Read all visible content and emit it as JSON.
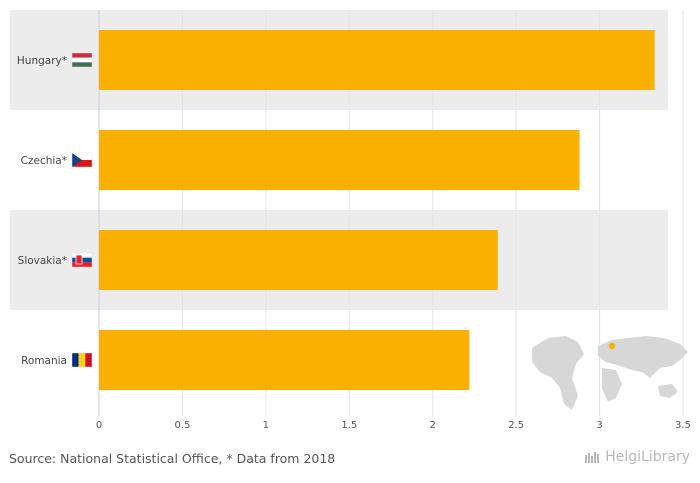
{
  "chart_data": {
    "type": "bar",
    "orientation": "horizontal",
    "categories": [
      "Hungary*",
      "Czechia*",
      "Slovakia*",
      "Romania"
    ],
    "values": [
      3.33,
      2.88,
      2.39,
      2.22
    ],
    "xlim": [
      0,
      3.5
    ],
    "xticks": [
      0,
      0.5,
      1,
      1.5,
      2,
      2.5,
      3,
      3.5
    ],
    "tick_labels": [
      "0",
      "0.5",
      "1",
      "1.5",
      "2",
      "2.5",
      "3",
      "3.5"
    ],
    "bar_color": "#f9b000",
    "band_color": "#ececec",
    "grid": true
  },
  "flags": [
    {
      "country": "Hungary",
      "stripes": "horizontal",
      "colors": [
        "#cd2a3e",
        "#ffffff",
        "#436f4d"
      ]
    },
    {
      "country": "Czechia",
      "stripes": "czech",
      "colors": [
        "#ffffff",
        "#d7141a",
        "#11457e"
      ]
    },
    {
      "country": "Slovakia",
      "stripes": "horizontal",
      "colors": [
        "#ffffff",
        "#0b4ea2",
        "#ee1c25"
      ]
    },
    {
      "country": "Romania",
      "stripes": "vertical",
      "colors": [
        "#002b7f",
        "#fcd116",
        "#ce1126"
      ]
    }
  ],
  "footer": {
    "source": "Source: National Statistical Office, * Data from 2018",
    "brand": "HelgiLibrary"
  }
}
